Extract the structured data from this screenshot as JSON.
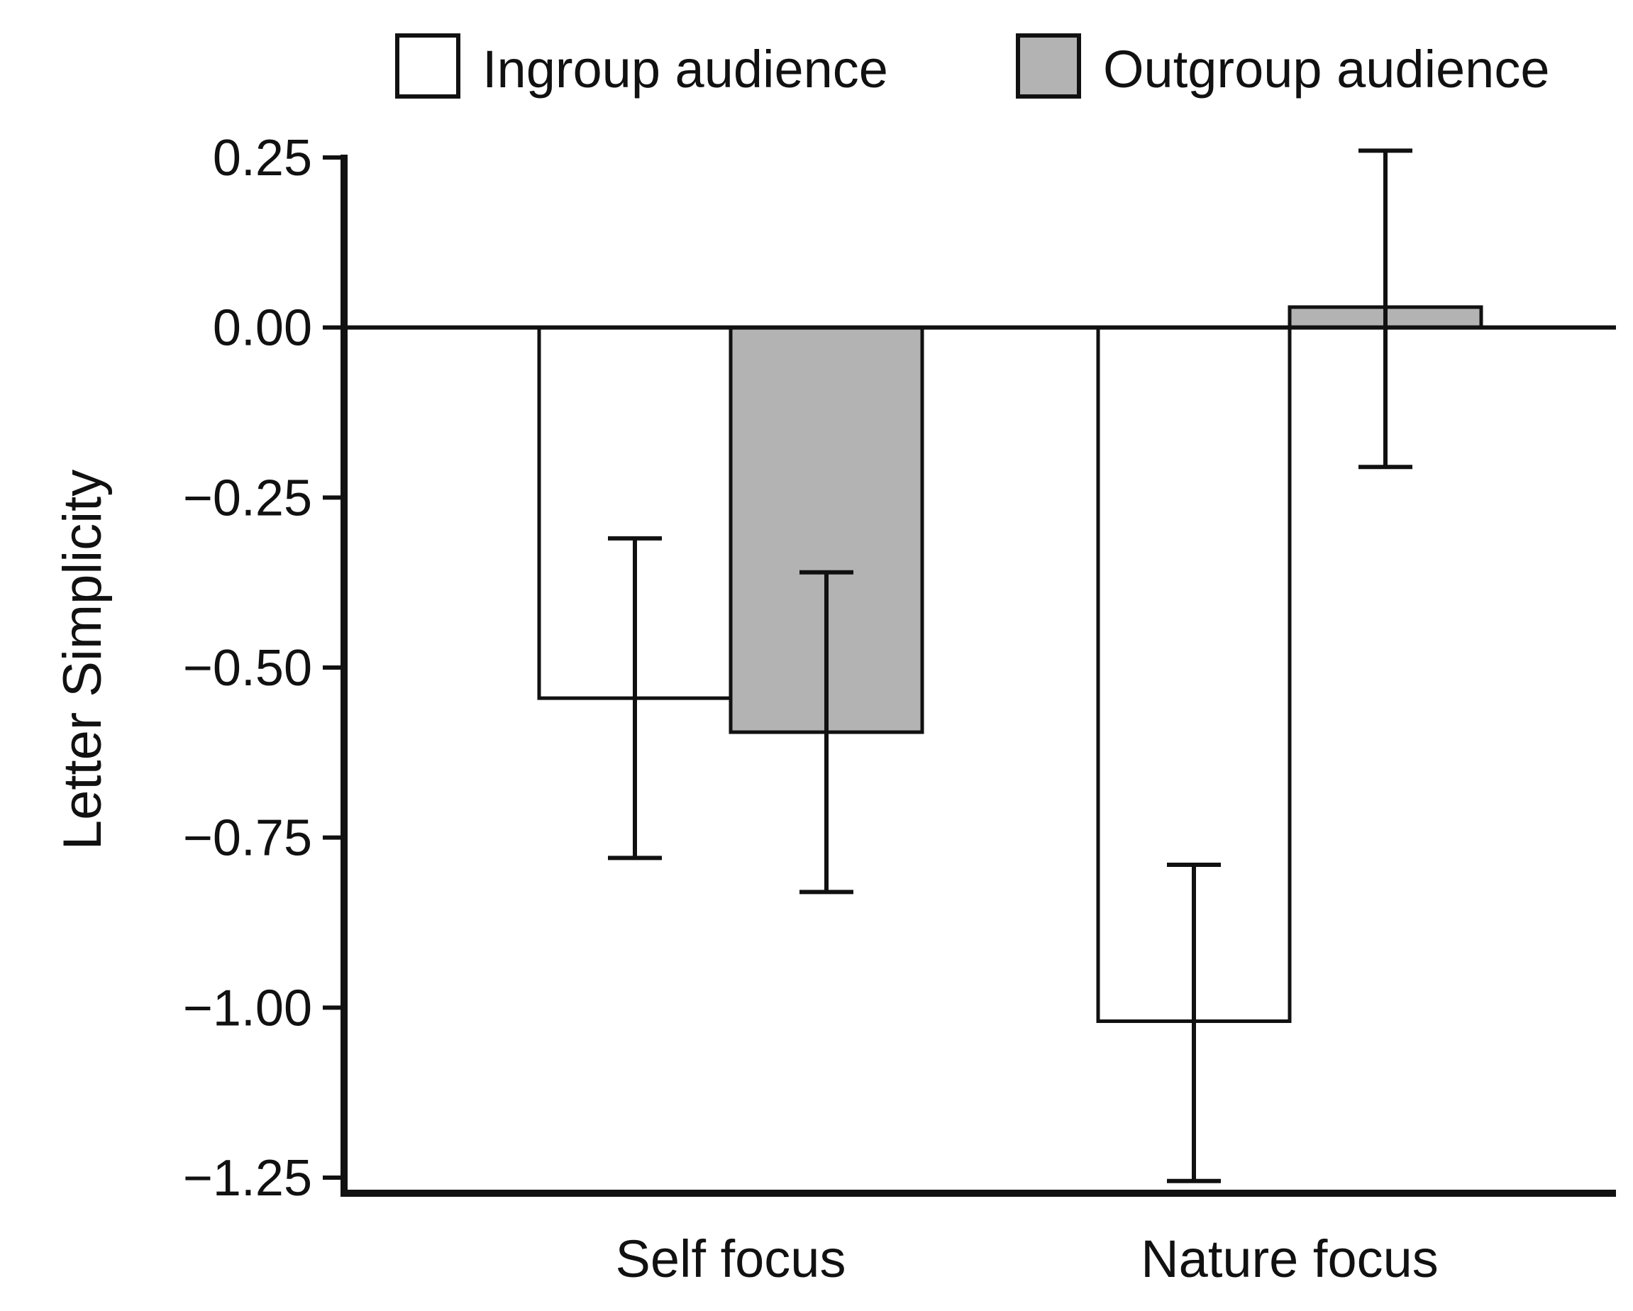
{
  "chart_data": {
    "type": "bar",
    "title": "",
    "xlabel": "",
    "ylabel": "Letter Simplicity",
    "ylim": [
      -1.3,
      0.25
    ],
    "yticks": [
      {
        "value": 0.25,
        "label": "0.25"
      },
      {
        "value": 0.0,
        "label": "0.00"
      },
      {
        "value": -0.25,
        "label": "−0.25"
      },
      {
        "value": -0.5,
        "label": "−0.50"
      },
      {
        "value": -0.75,
        "label": "−0.75"
      },
      {
        "value": -1.0,
        "label": "−1.00"
      },
      {
        "value": -1.25,
        "label": "−1.25"
      }
    ],
    "categories": [
      "Self focus",
      "Nature focus"
    ],
    "legend_position": "top",
    "series": [
      {
        "name": "Ingroup audience",
        "color": "#ffffff",
        "values": [
          -0.545,
          -1.02
        ],
        "error_low": [
          -0.78,
          -1.255
        ],
        "error_high": [
          -0.31,
          -0.79
        ]
      },
      {
        "name": "Outgroup audience",
        "color": "#b3b3b3",
        "values": [
          -0.595,
          0.03
        ],
        "error_low": [
          -0.83,
          -0.205
        ],
        "error_high": [
          -0.36,
          0.26
        ]
      }
    ]
  }
}
